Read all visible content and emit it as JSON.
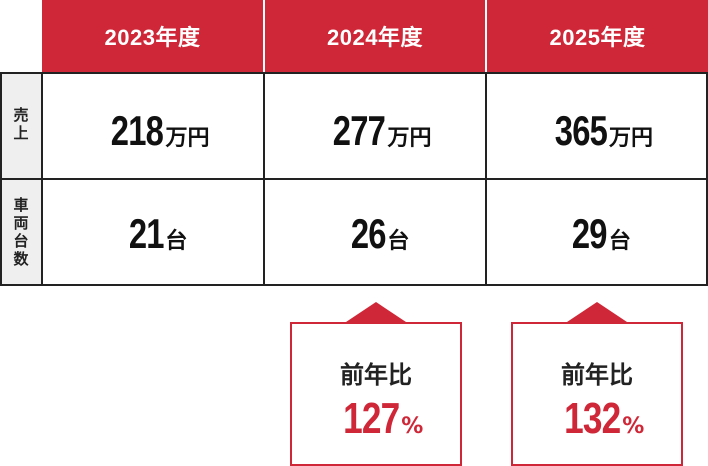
{
  "table": {
    "columns": [
      "2023年度",
      "2024年度",
      "2025年度"
    ],
    "rows": [
      {
        "label": "売上",
        "unit": "万円",
        "values": [
          "218",
          "277",
          "365"
        ]
      },
      {
        "label": "車両台数",
        "unit": "台",
        "values": [
          "21",
          "26",
          "29"
        ]
      }
    ]
  },
  "yoy": [
    {
      "year": "2024年度",
      "title": "前年比",
      "value": "127",
      "unit": "%"
    },
    {
      "year": "2025年度",
      "title": "前年比",
      "value": "132",
      "unit": "%"
    }
  ],
  "colors": {
    "accent": "#cf2737",
    "label_bg": "#efefef",
    "border": "#222222"
  }
}
